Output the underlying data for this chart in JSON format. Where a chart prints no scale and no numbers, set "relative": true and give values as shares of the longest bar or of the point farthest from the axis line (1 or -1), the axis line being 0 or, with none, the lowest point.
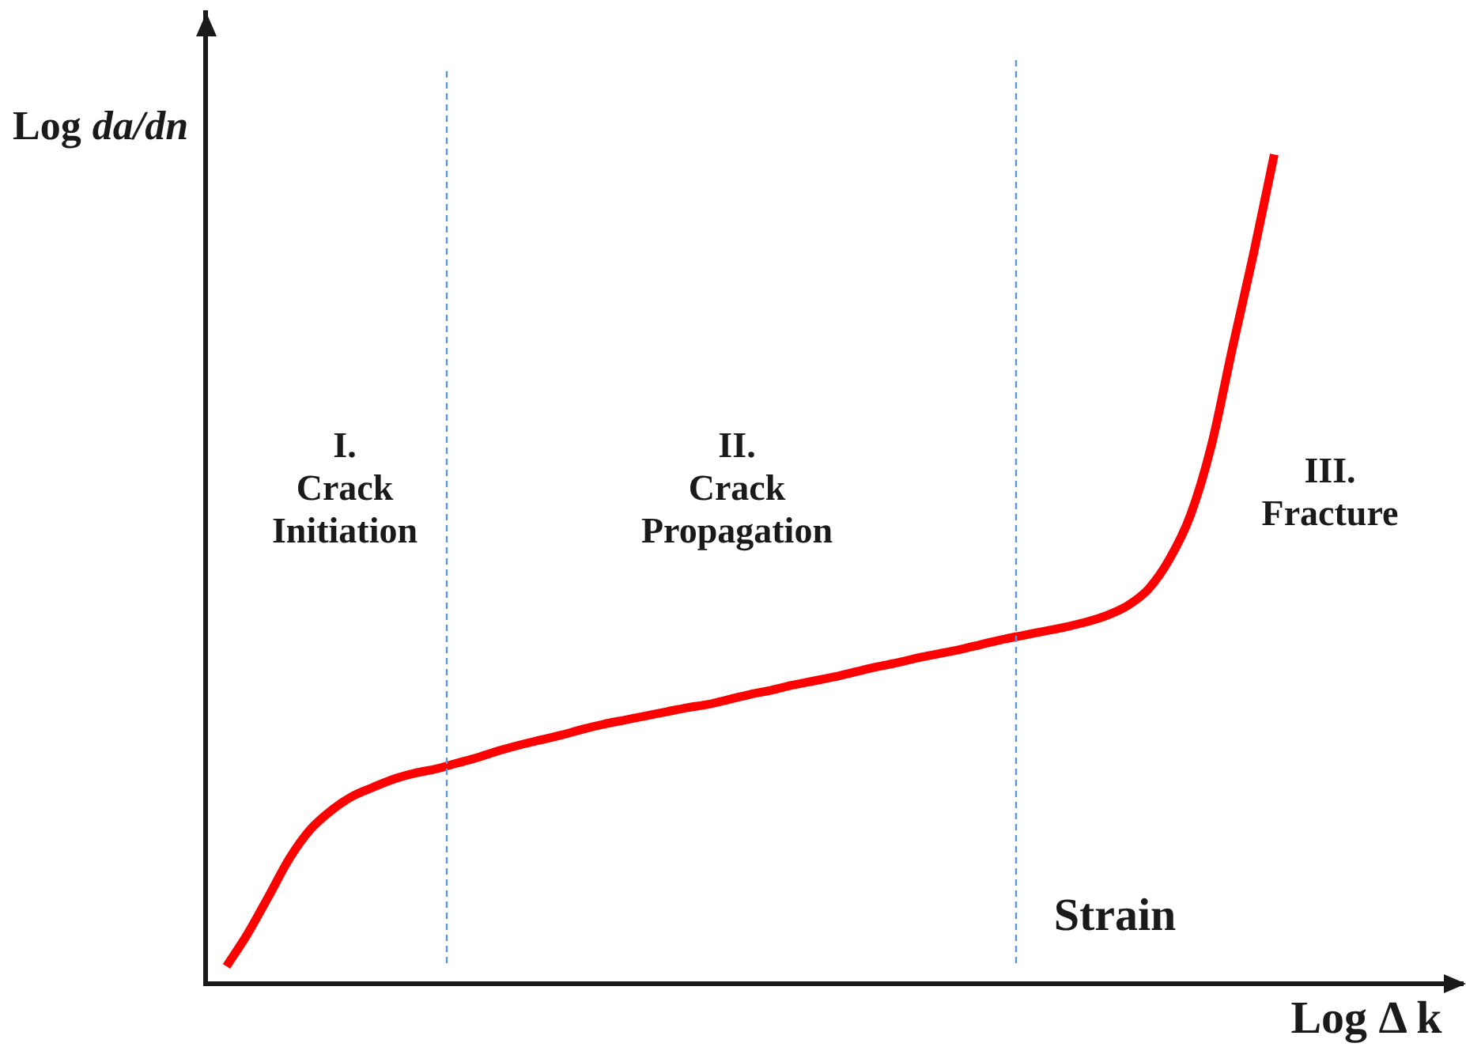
{
  "chart_data": {
    "type": "line",
    "xlabel": "Log Δ k",
    "ylabel": "Log da/dn",
    "annotations": [
      "I.\nCrack\nInitiation",
      "II.\nCrack\nPropagation",
      "III.\nFracture",
      "Strain"
    ],
    "relative": true,
    "tick_labels": false,
    "line_style": "solid",
    "categories": [
      null,
      null,
      null,
      null,
      null,
      null,
      null,
      null,
      null,
      null,
      null,
      null,
      null,
      null,
      null,
      null,
      null,
      null,
      null,
      null,
      null,
      null,
      null,
      null,
      null,
      null,
      null,
      null,
      null,
      null,
      null,
      null,
      null,
      null,
      null,
      null,
      null,
      null,
      null,
      null,
      null,
      null,
      null,
      null,
      null,
      null,
      null,
      null,
      null,
      null,
      null,
      null,
      null,
      null,
      null,
      null,
      null,
      null,
      null,
      null,
      null
    ],
    "series": [
      {
        "color": "#ff0000",
        "values": [
          null,
          0.021,
          0.06,
          0.105,
          0.151,
          0.186,
          0.209,
          0.226,
          0.237,
          0.247,
          0.254,
          0.259,
          0.266,
          0.273,
          0.281,
          0.288,
          0.294,
          0.3,
          0.307,
          0.313,
          0.318,
          0.323,
          0.328,
          0.333,
          0.337,
          0.343,
          0.349,
          0.354,
          0.36,
          0.365,
          0.37,
          0.376,
          0.382,
          0.387,
          0.393,
          0.398,
          0.403,
          0.409,
          0.415,
          0.42,
          0.425,
          0.43,
          0.436,
          0.444,
          0.456,
          0.476,
          0.512,
          0.565,
          0.649,
          0.766,
          0.879,
          1,
          null,
          null,
          null,
          null,
          null,
          null,
          null,
          null,
          null
        ]
      }
    ]
  }
}
